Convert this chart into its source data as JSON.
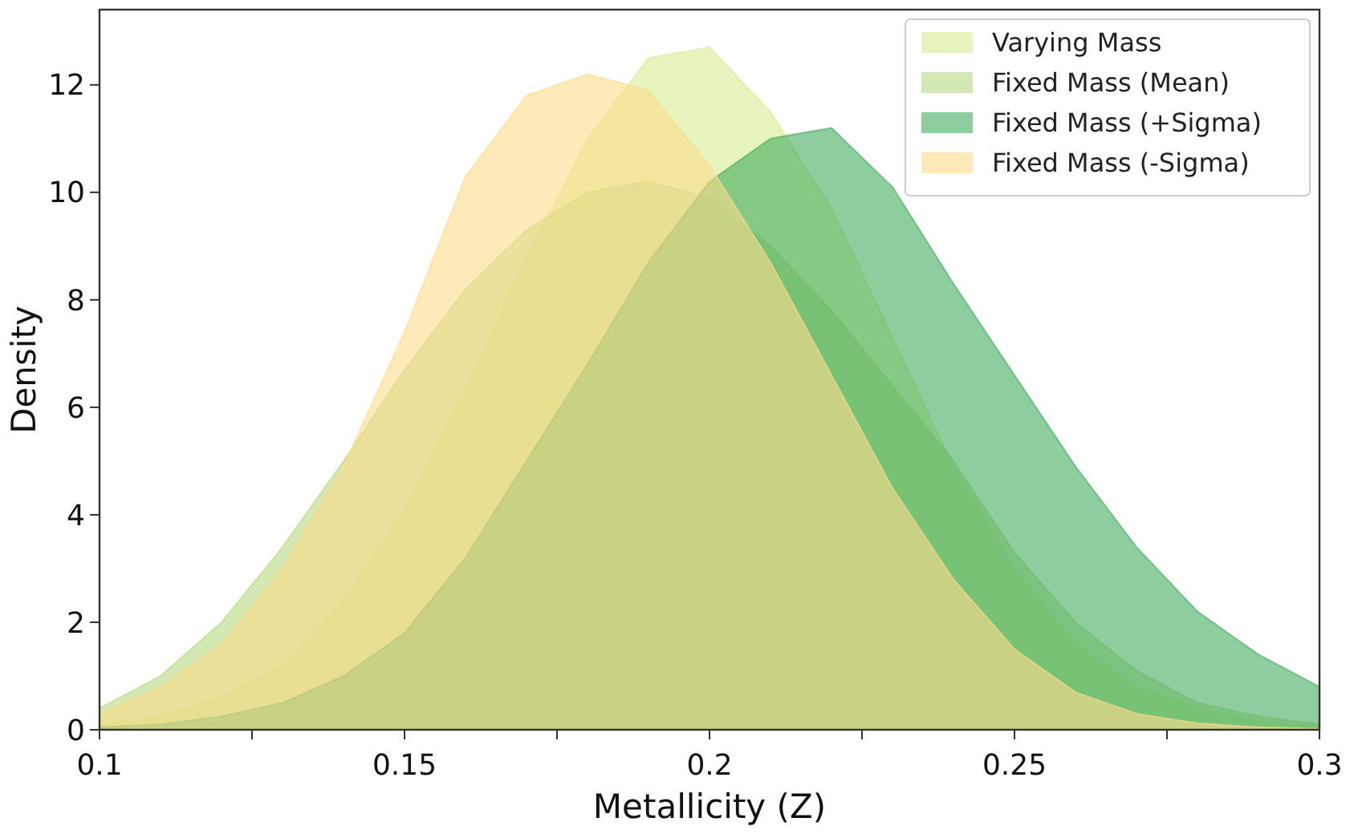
{
  "chart_data": {
    "type": "area",
    "xlabel": "Metallicity (Z)",
    "ylabel": "Density",
    "x": [
      0.1,
      0.11,
      0.12,
      0.13,
      0.14,
      0.15,
      0.16,
      0.17,
      0.18,
      0.19,
      0.2,
      0.21,
      0.22,
      0.23,
      0.24,
      0.25,
      0.26,
      0.27,
      0.28,
      0.29,
      0.3
    ],
    "series": [
      {
        "name": "Varying Mass",
        "color": "#d9ed92",
        "values": [
          0.1,
          0.25,
          0.6,
          1.2,
          2.4,
          4.1,
          6.3,
          8.8,
          11.0,
          12.5,
          12.7,
          11.5,
          9.7,
          7.3,
          4.9,
          3.0,
          1.6,
          0.8,
          0.4,
          0.15,
          0.06
        ]
      },
      {
        "name": "Fixed Mass (Mean)",
        "color": "#b5d97f",
        "values": [
          0.4,
          1.0,
          2.0,
          3.4,
          5.0,
          6.7,
          8.2,
          9.3,
          10.0,
          10.2,
          9.9,
          9.0,
          7.8,
          6.4,
          5.0,
          3.3,
          2.0,
          1.1,
          0.5,
          0.25,
          0.1
        ]
      },
      {
        "name": "Fixed Mass (+Sigma)",
        "color": "#41ab5d",
        "values": [
          0.05,
          0.1,
          0.25,
          0.5,
          1.0,
          1.8,
          3.2,
          5.0,
          6.8,
          8.7,
          10.2,
          11.0,
          11.2,
          10.1,
          8.3,
          6.6,
          4.9,
          3.4,
          2.2,
          1.4,
          0.8
        ]
      },
      {
        "name": "Fixed Mass (-Sigma)",
        "color": "#fddc8a",
        "values": [
          0.3,
          0.8,
          1.6,
          3.0,
          4.9,
          7.4,
          10.3,
          11.8,
          12.2,
          11.9,
          10.5,
          8.7,
          6.6,
          4.5,
          2.8,
          1.5,
          0.7,
          0.3,
          0.12,
          0.05,
          0.02
        ]
      }
    ],
    "xlim": [
      0.1,
      0.3
    ],
    "xticks": [
      0.1,
      {
        "value": 0.125,
        "label": null
      },
      0.15,
      {
        "value": 0.175,
        "label": null
      },
      0.2,
      {
        "value": 0.225,
        "label": null
      },
      0.25,
      {
        "value": 0.275,
        "label": null
      },
      0.3
    ],
    "ylim": [
      0,
      13.4
    ],
    "yticks": [
      0,
      2,
      4,
      6,
      8,
      10,
      12
    ],
    "legend": "top right",
    "grid": false
  }
}
